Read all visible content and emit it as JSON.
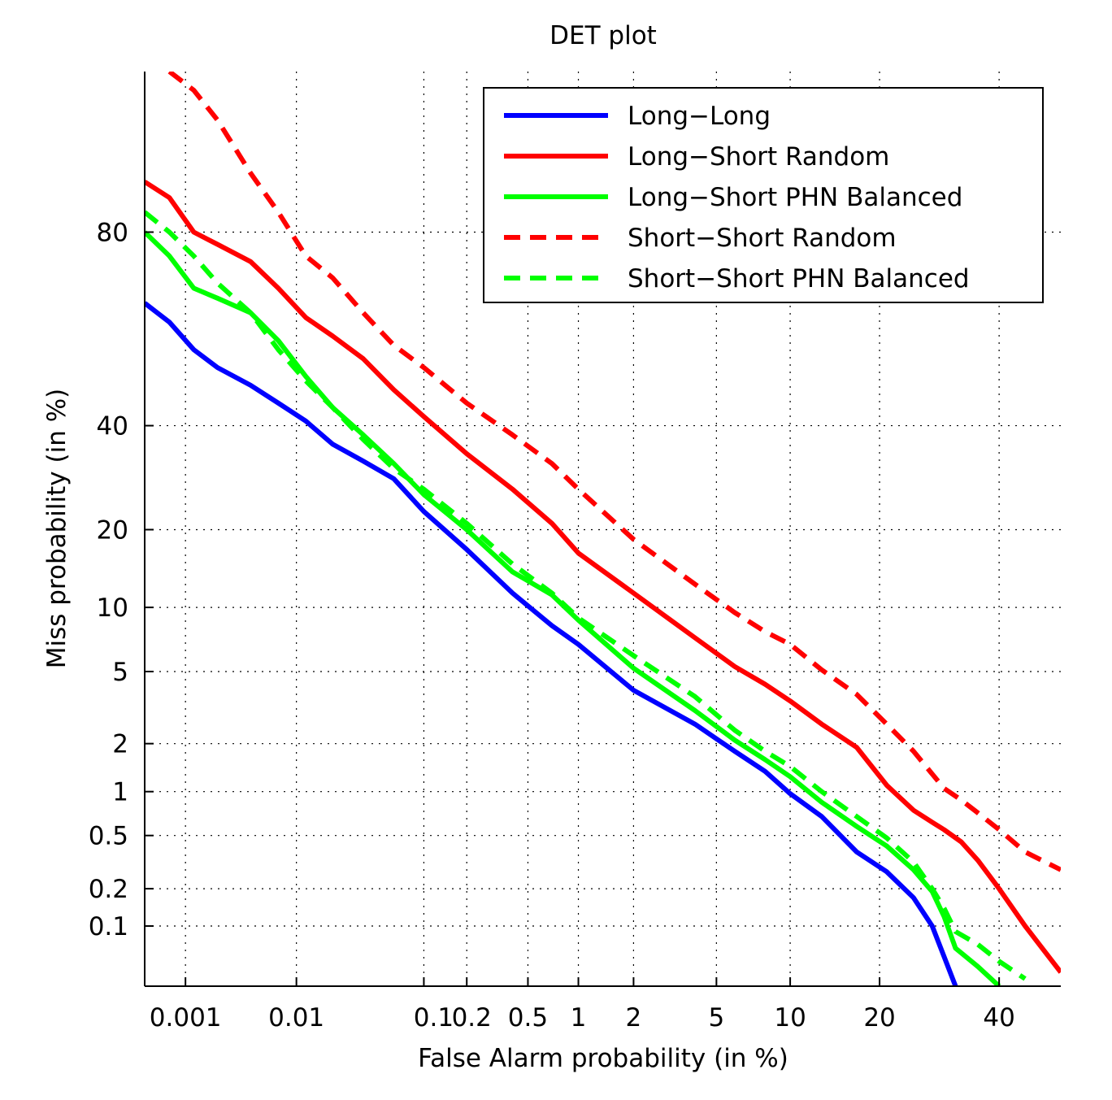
{
  "chart_data": {
    "type": "line",
    "title": "DET plot",
    "xlabel": "False Alarm probability (in %)",
    "ylabel": "Miss probability (in %)",
    "x_scale": "normal-deviate (probit)",
    "y_scale": "normal-deviate (probit)",
    "xlim": [
      0.0004,
      52
    ],
    "ylim": [
      0.03,
      96
    ],
    "x_ticks": [
      {
        "value": 0.001,
        "label": "0.001"
      },
      {
        "value": 0.01,
        "label": "0.01"
      },
      {
        "value": 0.1,
        "label": "0.1"
      },
      {
        "value": 0.2,
        "label": "0.2"
      },
      {
        "value": 0.5,
        "label": "0.5"
      },
      {
        "value": 1,
        "label": "1"
      },
      {
        "value": 2,
        "label": "2"
      },
      {
        "value": 5,
        "label": "5"
      },
      {
        "value": 10,
        "label": "10"
      },
      {
        "value": 20,
        "label": "20"
      },
      {
        "value": 40,
        "label": "40"
      }
    ],
    "y_ticks": [
      {
        "value": 0.1,
        "label": "0.1"
      },
      {
        "value": 0.2,
        "label": "0.2"
      },
      {
        "value": 0.5,
        "label": "0.5"
      },
      {
        "value": 1,
        "label": "1"
      },
      {
        "value": 2,
        "label": "2"
      },
      {
        "value": 5,
        "label": "5"
      },
      {
        "value": 10,
        "label": "10"
      },
      {
        "value": 20,
        "label": "20"
      },
      {
        "value": 40,
        "label": "40"
      },
      {
        "value": 80,
        "label": "80"
      }
    ],
    "grid": true,
    "legend_position": "top-right",
    "series": [
      {
        "name": "Long−Long",
        "color": "#0000ff",
        "dash": "solid",
        "points": [
          [
            0.0004,
            67
          ],
          [
            0.0007,
            63
          ],
          [
            0.0012,
            57
          ],
          [
            0.002,
            53
          ],
          [
            0.004,
            49
          ],
          [
            0.007,
            45
          ],
          [
            0.012,
            41
          ],
          [
            0.02,
            36
          ],
          [
            0.035,
            32.5
          ],
          [
            0.06,
            29
          ],
          [
            0.1,
            23
          ],
          [
            0.2,
            17
          ],
          [
            0.4,
            11.5
          ],
          [
            0.7,
            8.3
          ],
          [
            1,
            6.8
          ],
          [
            2,
            4.0
          ],
          [
            4,
            2.6
          ],
          [
            6,
            1.8
          ],
          [
            8,
            1.35
          ],
          [
            10,
            0.97
          ],
          [
            13,
            0.68
          ],
          [
            17,
            0.38
          ],
          [
            21,
            0.27
          ],
          [
            25,
            0.17
          ],
          [
            28,
            0.1
          ],
          [
            30,
            0.055
          ],
          [
            32,
            0.03
          ]
        ]
      },
      {
        "name": "Long−Short Random",
        "color": "#ff0000",
        "dash": "solid",
        "points": [
          [
            0.0004,
            87
          ],
          [
            0.0007,
            85
          ],
          [
            0.0012,
            80
          ],
          [
            0.002,
            78
          ],
          [
            0.004,
            75
          ],
          [
            0.007,
            70
          ],
          [
            0.012,
            64
          ],
          [
            0.02,
            60
          ],
          [
            0.035,
            55
          ],
          [
            0.06,
            48
          ],
          [
            0.1,
            42
          ],
          [
            0.2,
            34
          ],
          [
            0.4,
            27
          ],
          [
            0.7,
            21
          ],
          [
            1,
            16.5
          ],
          [
            2,
            11.5
          ],
          [
            4,
            7.3
          ],
          [
            6,
            5.3
          ],
          [
            8,
            4.3
          ],
          [
            10,
            3.5
          ],
          [
            13,
            2.6
          ],
          [
            17,
            1.9
          ],
          [
            21,
            1.1
          ],
          [
            25,
            0.75
          ],
          [
            28,
            0.62
          ],
          [
            30,
            0.55
          ],
          [
            33,
            0.45
          ],
          [
            36,
            0.33
          ],
          [
            40,
            0.2
          ],
          [
            45,
            0.1
          ],
          [
            52,
            0.04
          ]
        ]
      },
      {
        "name": "Long−Short PHN Balanced",
        "color": "#00ff00",
        "dash": "solid",
        "points": [
          [
            0.0004,
            80
          ],
          [
            0.0007,
            76
          ],
          [
            0.0012,
            70
          ],
          [
            0.002,
            68
          ],
          [
            0.004,
            65
          ],
          [
            0.007,
            59
          ],
          [
            0.012,
            51
          ],
          [
            0.02,
            44
          ],
          [
            0.035,
            38
          ],
          [
            0.06,
            32
          ],
          [
            0.1,
            26
          ],
          [
            0.2,
            20
          ],
          [
            0.4,
            14
          ],
          [
            0.7,
            11.3
          ],
          [
            1,
            8.8
          ],
          [
            2,
            5.2
          ],
          [
            4,
            3.1
          ],
          [
            6,
            2.1
          ],
          [
            8,
            1.6
          ],
          [
            10,
            1.25
          ],
          [
            13,
            0.85
          ],
          [
            17,
            0.58
          ],
          [
            21,
            0.42
          ],
          [
            25,
            0.28
          ],
          [
            28,
            0.19
          ],
          [
            30,
            0.12
          ],
          [
            32,
            0.065
          ],
          [
            36,
            0.045
          ],
          [
            40,
            0.03
          ]
        ]
      },
      {
        "name": "Short−Short Random",
        "color": "#ff0000",
        "dash": "dashed",
        "points": [
          [
            0.0007,
            96
          ],
          [
            0.0012,
            95
          ],
          [
            0.002,
            93
          ],
          [
            0.004,
            88
          ],
          [
            0.007,
            83
          ],
          [
            0.012,
            76
          ],
          [
            0.02,
            72
          ],
          [
            0.035,
            65
          ],
          [
            0.06,
            58
          ],
          [
            0.1,
            53
          ],
          [
            0.2,
            45
          ],
          [
            0.4,
            38
          ],
          [
            0.7,
            32
          ],
          [
            1,
            27
          ],
          [
            2,
            18.5
          ],
          [
            4,
            12.5
          ],
          [
            6,
            9.5
          ],
          [
            8,
            7.8
          ],
          [
            10,
            6.8
          ],
          [
            13,
            5.1
          ],
          [
            17,
            3.8
          ],
          [
            21,
            2.6
          ],
          [
            25,
            1.8
          ],
          [
            28,
            1.3
          ],
          [
            30,
            1.05
          ],
          [
            33,
            0.88
          ],
          [
            36,
            0.72
          ],
          [
            40,
            0.55
          ],
          [
            45,
            0.38
          ],
          [
            52,
            0.28
          ]
        ]
      },
      {
        "name": "Short−Short PHN Balanced",
        "color": "#00ff00",
        "dash": "dashed",
        "points": [
          [
            0.0004,
            83
          ],
          [
            0.0007,
            80
          ],
          [
            0.0012,
            76
          ],
          [
            0.002,
            71
          ],
          [
            0.004,
            65
          ],
          [
            0.007,
            57
          ],
          [
            0.012,
            50
          ],
          [
            0.02,
            44
          ],
          [
            0.035,
            37
          ],
          [
            0.06,
            31
          ],
          [
            0.1,
            27
          ],
          [
            0.2,
            21
          ],
          [
            0.4,
            15
          ],
          [
            0.7,
            11.5
          ],
          [
            1,
            9
          ],
          [
            2,
            6
          ],
          [
            4,
            3.7
          ],
          [
            6,
            2.4
          ],
          [
            8,
            1.8
          ],
          [
            10,
            1.45
          ],
          [
            13,
            1.0
          ],
          [
            17,
            0.68
          ],
          [
            21,
            0.48
          ],
          [
            25,
            0.32
          ],
          [
            28,
            0.2
          ],
          [
            30,
            0.14
          ],
          [
            32,
            0.09
          ],
          [
            36,
            0.07
          ],
          [
            40,
            0.05
          ],
          [
            45,
            0.035
          ]
        ]
      }
    ]
  }
}
